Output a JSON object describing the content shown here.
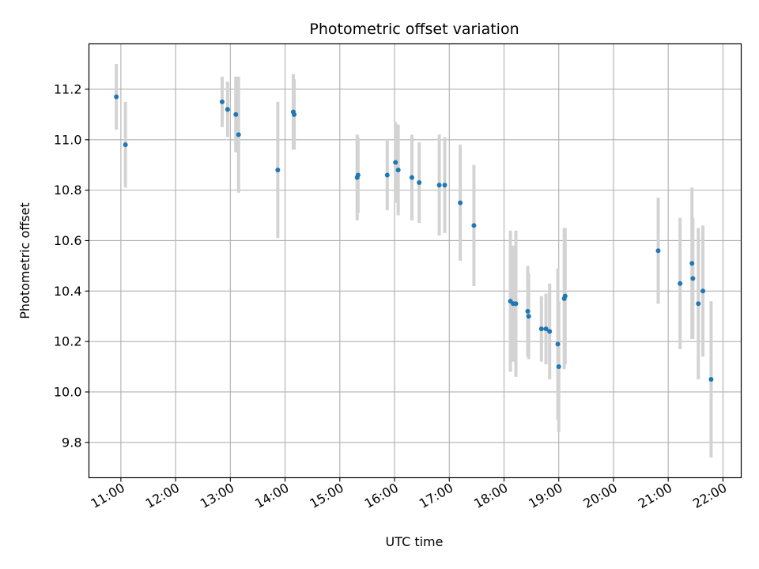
{
  "chart_data": {
    "type": "scatter",
    "title": "Photometric offset variation",
    "xlabel": "UTC time",
    "ylabel": "Photometric offset",
    "xlim": [
      "10:25",
      "22:20"
    ],
    "ylim": [
      9.66,
      11.38
    ],
    "x_ticks": [
      "11:00",
      "12:00",
      "13:00",
      "14:00",
      "15:00",
      "16:00",
      "17:00",
      "18:00",
      "19:00",
      "20:00",
      "21:00",
      "22:00"
    ],
    "y_ticks": [
      "9.8",
      "10.0",
      "10.2",
      "10.4",
      "10.6",
      "10.8",
      "11.0",
      "11.2"
    ],
    "grid": true,
    "colors": {
      "point": "#1f77b4",
      "errorbar": "#d3d3d3",
      "grid": "#b0b0b0"
    },
    "series": [
      {
        "points": [
          {
            "x": "10:55",
            "y": 11.17,
            "err": 0.13
          },
          {
            "x": "11:05",
            "y": 10.98,
            "err": 0.17
          },
          {
            "x": "12:51",
            "y": 11.15,
            "err": 0.1
          },
          {
            "x": "12:57",
            "y": 11.12,
            "err": 0.11
          },
          {
            "x": "13:06",
            "y": 11.1,
            "err": 0.15
          },
          {
            "x": "13:09",
            "y": 11.02,
            "err": 0.23
          },
          {
            "x": "13:52",
            "y": 10.88,
            "err": 0.27
          },
          {
            "x": "14:09",
            "y": 11.11,
            "err": 0.15
          },
          {
            "x": "14:10",
            "y": 11.1,
            "err": 0.14
          },
          {
            "x": "15:19",
            "y": 10.85,
            "err": 0.17
          },
          {
            "x": "15:20",
            "y": 10.86,
            "err": 0.15
          },
          {
            "x": "15:52",
            "y": 10.86,
            "err": 0.14
          },
          {
            "x": "16:01",
            "y": 10.91,
            "err": 0.16
          },
          {
            "x": "16:04",
            "y": 10.88,
            "err": 0.18
          },
          {
            "x": "16:19",
            "y": 10.85,
            "err": 0.17
          },
          {
            "x": "16:27",
            "y": 10.83,
            "err": 0.16
          },
          {
            "x": "16:49",
            "y": 10.82,
            "err": 0.2
          },
          {
            "x": "16:55",
            "y": 10.82,
            "err": 0.19
          },
          {
            "x": "17:12",
            "y": 10.75,
            "err": 0.23
          },
          {
            "x": "17:27",
            "y": 10.66,
            "err": 0.24
          },
          {
            "x": "18:07",
            "y": 10.36,
            "err": 0.28
          },
          {
            "x": "18:10",
            "y": 10.35,
            "err": 0.23
          },
          {
            "x": "18:13",
            "y": 10.35,
            "err": 0.29
          },
          {
            "x": "18:26",
            "y": 10.32,
            "err": 0.18
          },
          {
            "x": "18:27",
            "y": 10.3,
            "err": 0.17
          },
          {
            "x": "18:41",
            "y": 10.25,
            "err": 0.13
          },
          {
            "x": "18:46",
            "y": 10.25,
            "err": 0.14
          },
          {
            "x": "18:50",
            "y": 10.24,
            "err": 0.19
          },
          {
            "x": "18:59",
            "y": 10.19,
            "err": 0.3
          },
          {
            "x": "19:00",
            "y": 10.1,
            "err": 0.26
          },
          {
            "x": "19:06",
            "y": 10.37,
            "err": 0.28
          },
          {
            "x": "19:07",
            "y": 10.38,
            "err": 0.27
          },
          {
            "x": "20:49",
            "y": 10.56,
            "err": 0.21
          },
          {
            "x": "21:13",
            "y": 10.43,
            "err": 0.26
          },
          {
            "x": "21:26",
            "y": 10.51,
            "err": 0.3
          },
          {
            "x": "21:27",
            "y": 10.45,
            "err": 0.24
          },
          {
            "x": "21:33",
            "y": 10.35,
            "err": 0.3
          },
          {
            "x": "21:38",
            "y": 10.4,
            "err": 0.26
          },
          {
            "x": "21:47",
            "y": 10.05,
            "err": 0.31
          }
        ]
      }
    ]
  }
}
